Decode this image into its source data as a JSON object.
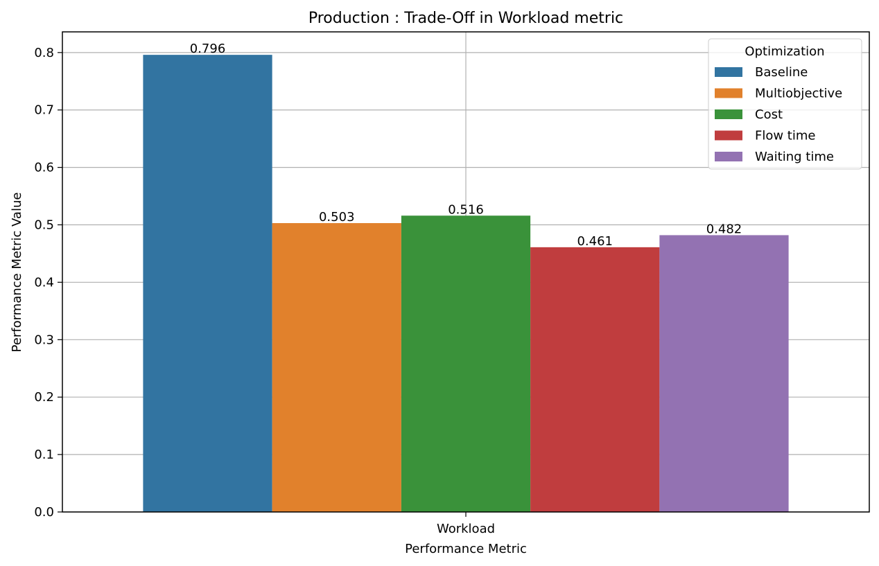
{
  "chart_data": {
    "type": "bar",
    "title": "Production : Trade-Off in Workload metric",
    "xlabel": "Performance Metric",
    "ylabel": "Performance Metric Value",
    "categories": [
      "Workload"
    ],
    "ylim": [
      0,
      0.836
    ],
    "yticks": [
      0.0,
      0.1,
      0.2,
      0.3,
      0.4,
      0.5,
      0.6,
      0.7,
      0.8
    ],
    "ytick_labels": [
      "0.0",
      "0.1",
      "0.2",
      "0.3",
      "0.4",
      "0.5",
      "0.6",
      "0.7",
      "0.8"
    ],
    "grid": true,
    "legend": {
      "title": "Optimization",
      "placement": "top-right"
    },
    "series": [
      {
        "name": "Baseline",
        "values": [
          0.796
        ],
        "label": "0.796",
        "color": "#3274a1"
      },
      {
        "name": "Multiobjective",
        "values": [
          0.503
        ],
        "label": "0.503",
        "color": "#e1812c"
      },
      {
        "name": "Cost",
        "values": [
          0.516
        ],
        "label": "0.516",
        "color": "#3a923a"
      },
      {
        "name": "Flow time",
        "values": [
          0.461
        ],
        "label": "0.461",
        "color": "#c03d3e"
      },
      {
        "name": "Waiting time",
        "values": [
          0.482
        ],
        "label": "0.482",
        "color": "#9372b2"
      }
    ]
  }
}
